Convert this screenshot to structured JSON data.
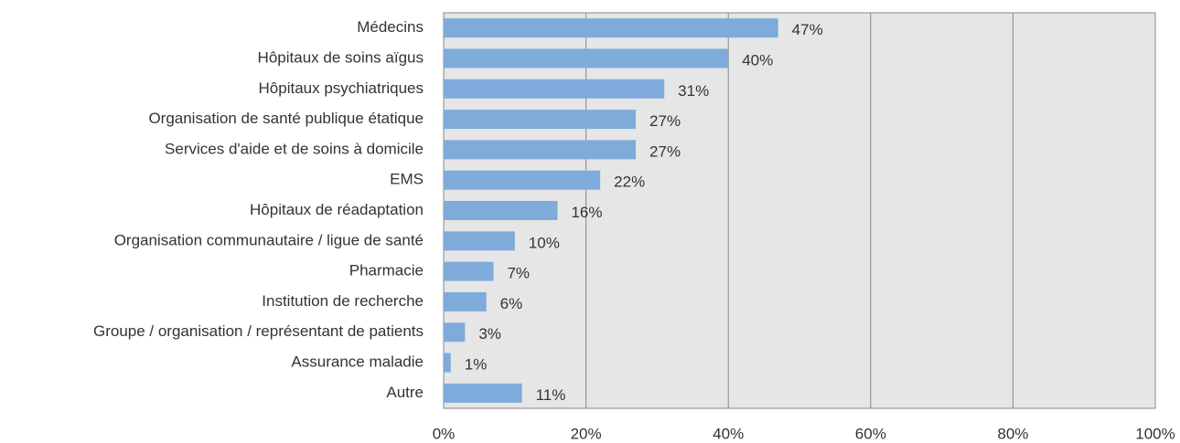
{
  "chart_data": {
    "type": "bar",
    "orientation": "horizontal",
    "categories": [
      "Médecins",
      "Hôpitaux de soins aïgus",
      "Hôpitaux psychiatriques",
      "Organisation de santé publique étatique",
      "Services d'aide et de soins à domicile",
      "EMS",
      "Hôpitaux de réadaptation",
      "Organisation communautaire / ligue de santé",
      "Pharmacie",
      "Institution de recherche",
      "Groupe / organisation / représentant de patients",
      "Assurance maladie",
      "Autre"
    ],
    "values": [
      47,
      40,
      31,
      27,
      27,
      22,
      16,
      10,
      7,
      6,
      3,
      1,
      11
    ],
    "value_labels": [
      "47%",
      "40%",
      "31%",
      "27%",
      "27%",
      "22%",
      "16%",
      "10%",
      "7%",
      "6%",
      "3%",
      "1%",
      "11%"
    ],
    "color": "#7fabdb",
    "xlim": [
      0,
      100
    ],
    "xticks": [
      {
        "value": 0,
        "label": "0%"
      },
      {
        "value": 20,
        "label": "20%"
      },
      {
        "value": 40,
        "label": "40%"
      },
      {
        "value": 60,
        "label": "60%"
      },
      {
        "value": 80,
        "label": "80%"
      },
      {
        "value": 100,
        "label": "100%"
      }
    ],
    "grid": true
  }
}
